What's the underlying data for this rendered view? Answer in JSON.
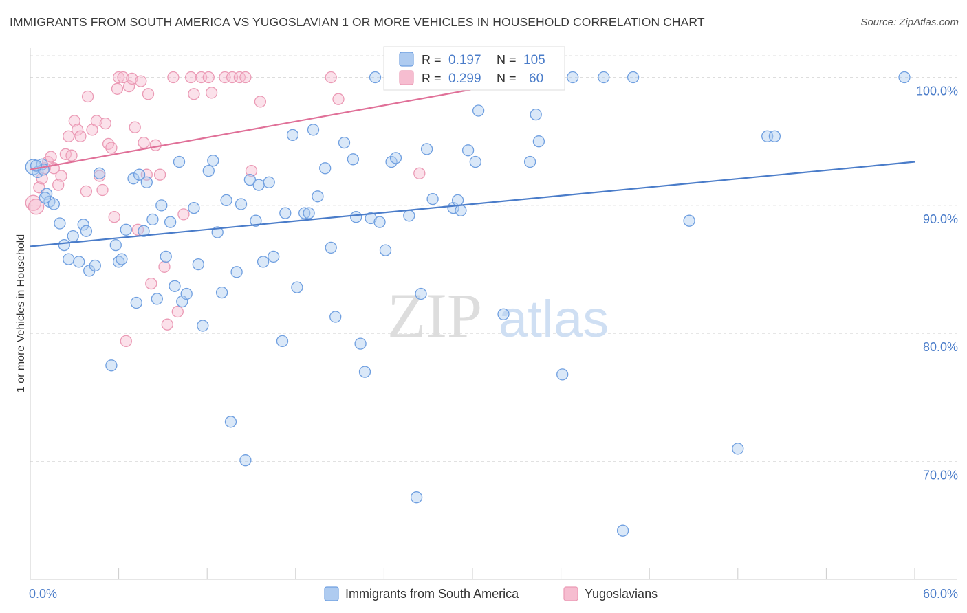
{
  "title": "IMMIGRANTS FROM SOUTH AMERICA VS YUGOSLAVIAN 1 OR MORE VEHICLES IN HOUSEHOLD CORRELATION CHART",
  "source": "Source: ZipAtlas.com",
  "watermark": {
    "zip": "ZIP",
    "atlas": "atlas"
  },
  "colors": {
    "blue": "#4a7cc9",
    "blue_fill": "#aecbf0",
    "blue_stroke": "#6f9fe0",
    "pink": "#e07098",
    "pink_fill": "#f6bdd0",
    "pink_stroke": "#eb9ab5",
    "grid": "#dddddd",
    "axis_text": "#4a7cc9"
  },
  "chart_data": {
    "type": "scatter",
    "ylabel": "1 or more Vehicles in Household",
    "xlabel": "",
    "x_tick_labels": [
      "0.0%",
      "60.0%"
    ],
    "y_tick_labels": [
      "100.0%",
      "90.0%",
      "80.0%",
      "70.0%"
    ],
    "y_ticks": [
      100,
      90,
      80,
      70
    ],
    "xlim": [
      0,
      60
    ],
    "ylim": [
      60.8,
      101.8
    ],
    "grid": "dashed horizontal",
    "legend_position": "bottom-center",
    "stats_position": "top-center",
    "series": [
      {
        "name": "Immigrants from South America",
        "color": "blue",
        "R": "0.197",
        "N": "105",
        "trend": {
          "x": [
            0,
            60
          ],
          "y": [
            86.8,
            93.4
          ]
        },
        "points": [
          [
            0.2,
            93.0
          ],
          [
            0.5,
            92.6
          ],
          [
            0.8,
            93.2
          ],
          [
            0.9,
            92.8
          ],
          [
            1.1,
            90.9
          ],
          [
            1.3,
            90.3
          ],
          [
            1.6,
            90.1
          ],
          [
            2.0,
            88.6
          ],
          [
            2.3,
            86.9
          ],
          [
            2.6,
            85.8
          ],
          [
            2.9,
            87.6
          ],
          [
            3.3,
            85.6
          ],
          [
            3.6,
            88.5
          ],
          [
            3.8,
            88.0
          ],
          [
            4.0,
            84.9
          ],
          [
            4.4,
            85.3
          ],
          [
            4.7,
            92.5
          ],
          [
            5.5,
            77.5
          ],
          [
            5.8,
            86.9
          ],
          [
            6.0,
            85.6
          ],
          [
            6.2,
            85.8
          ],
          [
            6.5,
            88.1
          ],
          [
            7.0,
            92.1
          ],
          [
            7.2,
            82.4
          ],
          [
            7.4,
            92.4
          ],
          [
            7.7,
            88.0
          ],
          [
            7.9,
            91.8
          ],
          [
            8.3,
            88.9
          ],
          [
            8.6,
            82.7
          ],
          [
            8.9,
            90.0
          ],
          [
            9.2,
            86.0
          ],
          [
            9.5,
            88.7
          ],
          [
            9.8,
            83.7
          ],
          [
            10.1,
            93.4
          ],
          [
            10.3,
            82.5
          ],
          [
            10.6,
            83.1
          ],
          [
            11.1,
            89.8
          ],
          [
            11.4,
            85.4
          ],
          [
            11.7,
            80.6
          ],
          [
            12.1,
            92.7
          ],
          [
            12.4,
            93.5
          ],
          [
            12.7,
            87.9
          ],
          [
            13.0,
            83.2
          ],
          [
            13.3,
            90.4
          ],
          [
            13.6,
            73.1
          ],
          [
            14.0,
            84.8
          ],
          [
            14.3,
            90.1
          ],
          [
            14.6,
            70.1
          ],
          [
            14.9,
            92.0
          ],
          [
            15.3,
            88.8
          ],
          [
            15.5,
            91.6
          ],
          [
            15.8,
            85.6
          ],
          [
            16.2,
            91.8
          ],
          [
            16.5,
            86.0
          ],
          [
            17.1,
            79.4
          ],
          [
            17.3,
            89.4
          ],
          [
            17.8,
            95.5
          ],
          [
            18.1,
            83.6
          ],
          [
            18.6,
            89.4
          ],
          [
            18.9,
            89.4
          ],
          [
            19.2,
            95.9
          ],
          [
            19.5,
            90.7
          ],
          [
            20.0,
            92.9
          ],
          [
            20.4,
            86.7
          ],
          [
            20.7,
            81.3
          ],
          [
            21.3,
            94.9
          ],
          [
            21.9,
            93.6
          ],
          [
            22.1,
            89.1
          ],
          [
            22.4,
            79.2
          ],
          [
            22.7,
            77.0
          ],
          [
            23.1,
            89.0
          ],
          [
            23.7,
            88.7
          ],
          [
            24.1,
            86.5
          ],
          [
            24.5,
            93.4
          ],
          [
            24.8,
            93.7
          ],
          [
            25.7,
            89.2
          ],
          [
            26.2,
            67.2
          ],
          [
            26.5,
            83.1
          ],
          [
            26.9,
            94.4
          ],
          [
            27.3,
            90.5
          ],
          [
            28.7,
            89.8
          ],
          [
            29.0,
            90.4
          ],
          [
            29.2,
            89.6
          ],
          [
            29.7,
            94.3
          ],
          [
            30.2,
            93.4
          ],
          [
            30.4,
            97.4
          ],
          [
            32.1,
            81.5
          ],
          [
            31.5,
            99.8
          ],
          [
            33.9,
            93.4
          ],
          [
            34.3,
            97.1
          ],
          [
            34.5,
            95.0
          ],
          [
            35.4,
            100.0
          ],
          [
            36.1,
            76.8
          ],
          [
            36.8,
            100.0
          ],
          [
            38.9,
            100.0
          ],
          [
            40.2,
            64.6
          ],
          [
            40.9,
            100.0
          ],
          [
            44.7,
            88.8
          ],
          [
            48.0,
            71.0
          ],
          [
            50.0,
            95.4
          ],
          [
            50.5,
            95.4
          ],
          [
            59.3,
            100.0
          ],
          [
            0.4,
            93.1
          ],
          [
            1.0,
            90.6
          ],
          [
            23.4,
            100.0
          ]
        ]
      },
      {
        "name": "Yugoslavians",
        "color": "pink",
        "R": "0.299",
        "N": "60",
        "trend": {
          "x": [
            0,
            34.5
          ],
          "y": [
            92.8,
            100.0
          ]
        },
        "points": [
          [
            0.2,
            90.2
          ],
          [
            0.4,
            89.9
          ],
          [
            0.6,
            91.4
          ],
          [
            0.8,
            92.1
          ],
          [
            1.0,
            92.9
          ],
          [
            1.2,
            93.4
          ],
          [
            1.4,
            93.8
          ],
          [
            1.6,
            92.9
          ],
          [
            1.9,
            91.6
          ],
          [
            2.1,
            92.3
          ],
          [
            2.4,
            94.0
          ],
          [
            2.6,
            95.4
          ],
          [
            2.8,
            93.9
          ],
          [
            3.0,
            96.6
          ],
          [
            3.2,
            95.9
          ],
          [
            3.4,
            95.4
          ],
          [
            3.8,
            91.1
          ],
          [
            3.9,
            98.5
          ],
          [
            4.2,
            95.9
          ],
          [
            4.5,
            96.6
          ],
          [
            4.7,
            92.3
          ],
          [
            4.9,
            91.2
          ],
          [
            5.1,
            96.4
          ],
          [
            5.3,
            94.8
          ],
          [
            5.5,
            94.5
          ],
          [
            5.7,
            89.1
          ],
          [
            5.9,
            99.1
          ],
          [
            6.0,
            100.0
          ],
          [
            6.3,
            100.0
          ],
          [
            6.5,
            79.4
          ],
          [
            6.7,
            99.3
          ],
          [
            6.9,
            99.9
          ],
          [
            7.1,
            96.1
          ],
          [
            7.3,
            88.1
          ],
          [
            7.5,
            99.7
          ],
          [
            7.7,
            94.9
          ],
          [
            7.9,
            92.4
          ],
          [
            8.0,
            98.7
          ],
          [
            8.2,
            83.9
          ],
          [
            8.5,
            94.7
          ],
          [
            8.8,
            92.4
          ],
          [
            9.1,
            85.2
          ],
          [
            9.3,
            80.7
          ],
          [
            9.7,
            100.0
          ],
          [
            10.0,
            81.7
          ],
          [
            10.4,
            89.3
          ],
          [
            10.9,
            100.0
          ],
          [
            11.1,
            98.7
          ],
          [
            11.6,
            100.0
          ],
          [
            12.1,
            100.0
          ],
          [
            12.3,
            98.8
          ],
          [
            13.2,
            100.0
          ],
          [
            13.7,
            100.0
          ],
          [
            14.2,
            100.0
          ],
          [
            14.6,
            100.0
          ],
          [
            15.0,
            92.7
          ],
          [
            15.6,
            98.1
          ],
          [
            20.4,
            100.0
          ],
          [
            20.9,
            98.3
          ],
          [
            26.4,
            92.5
          ]
        ]
      }
    ]
  }
}
